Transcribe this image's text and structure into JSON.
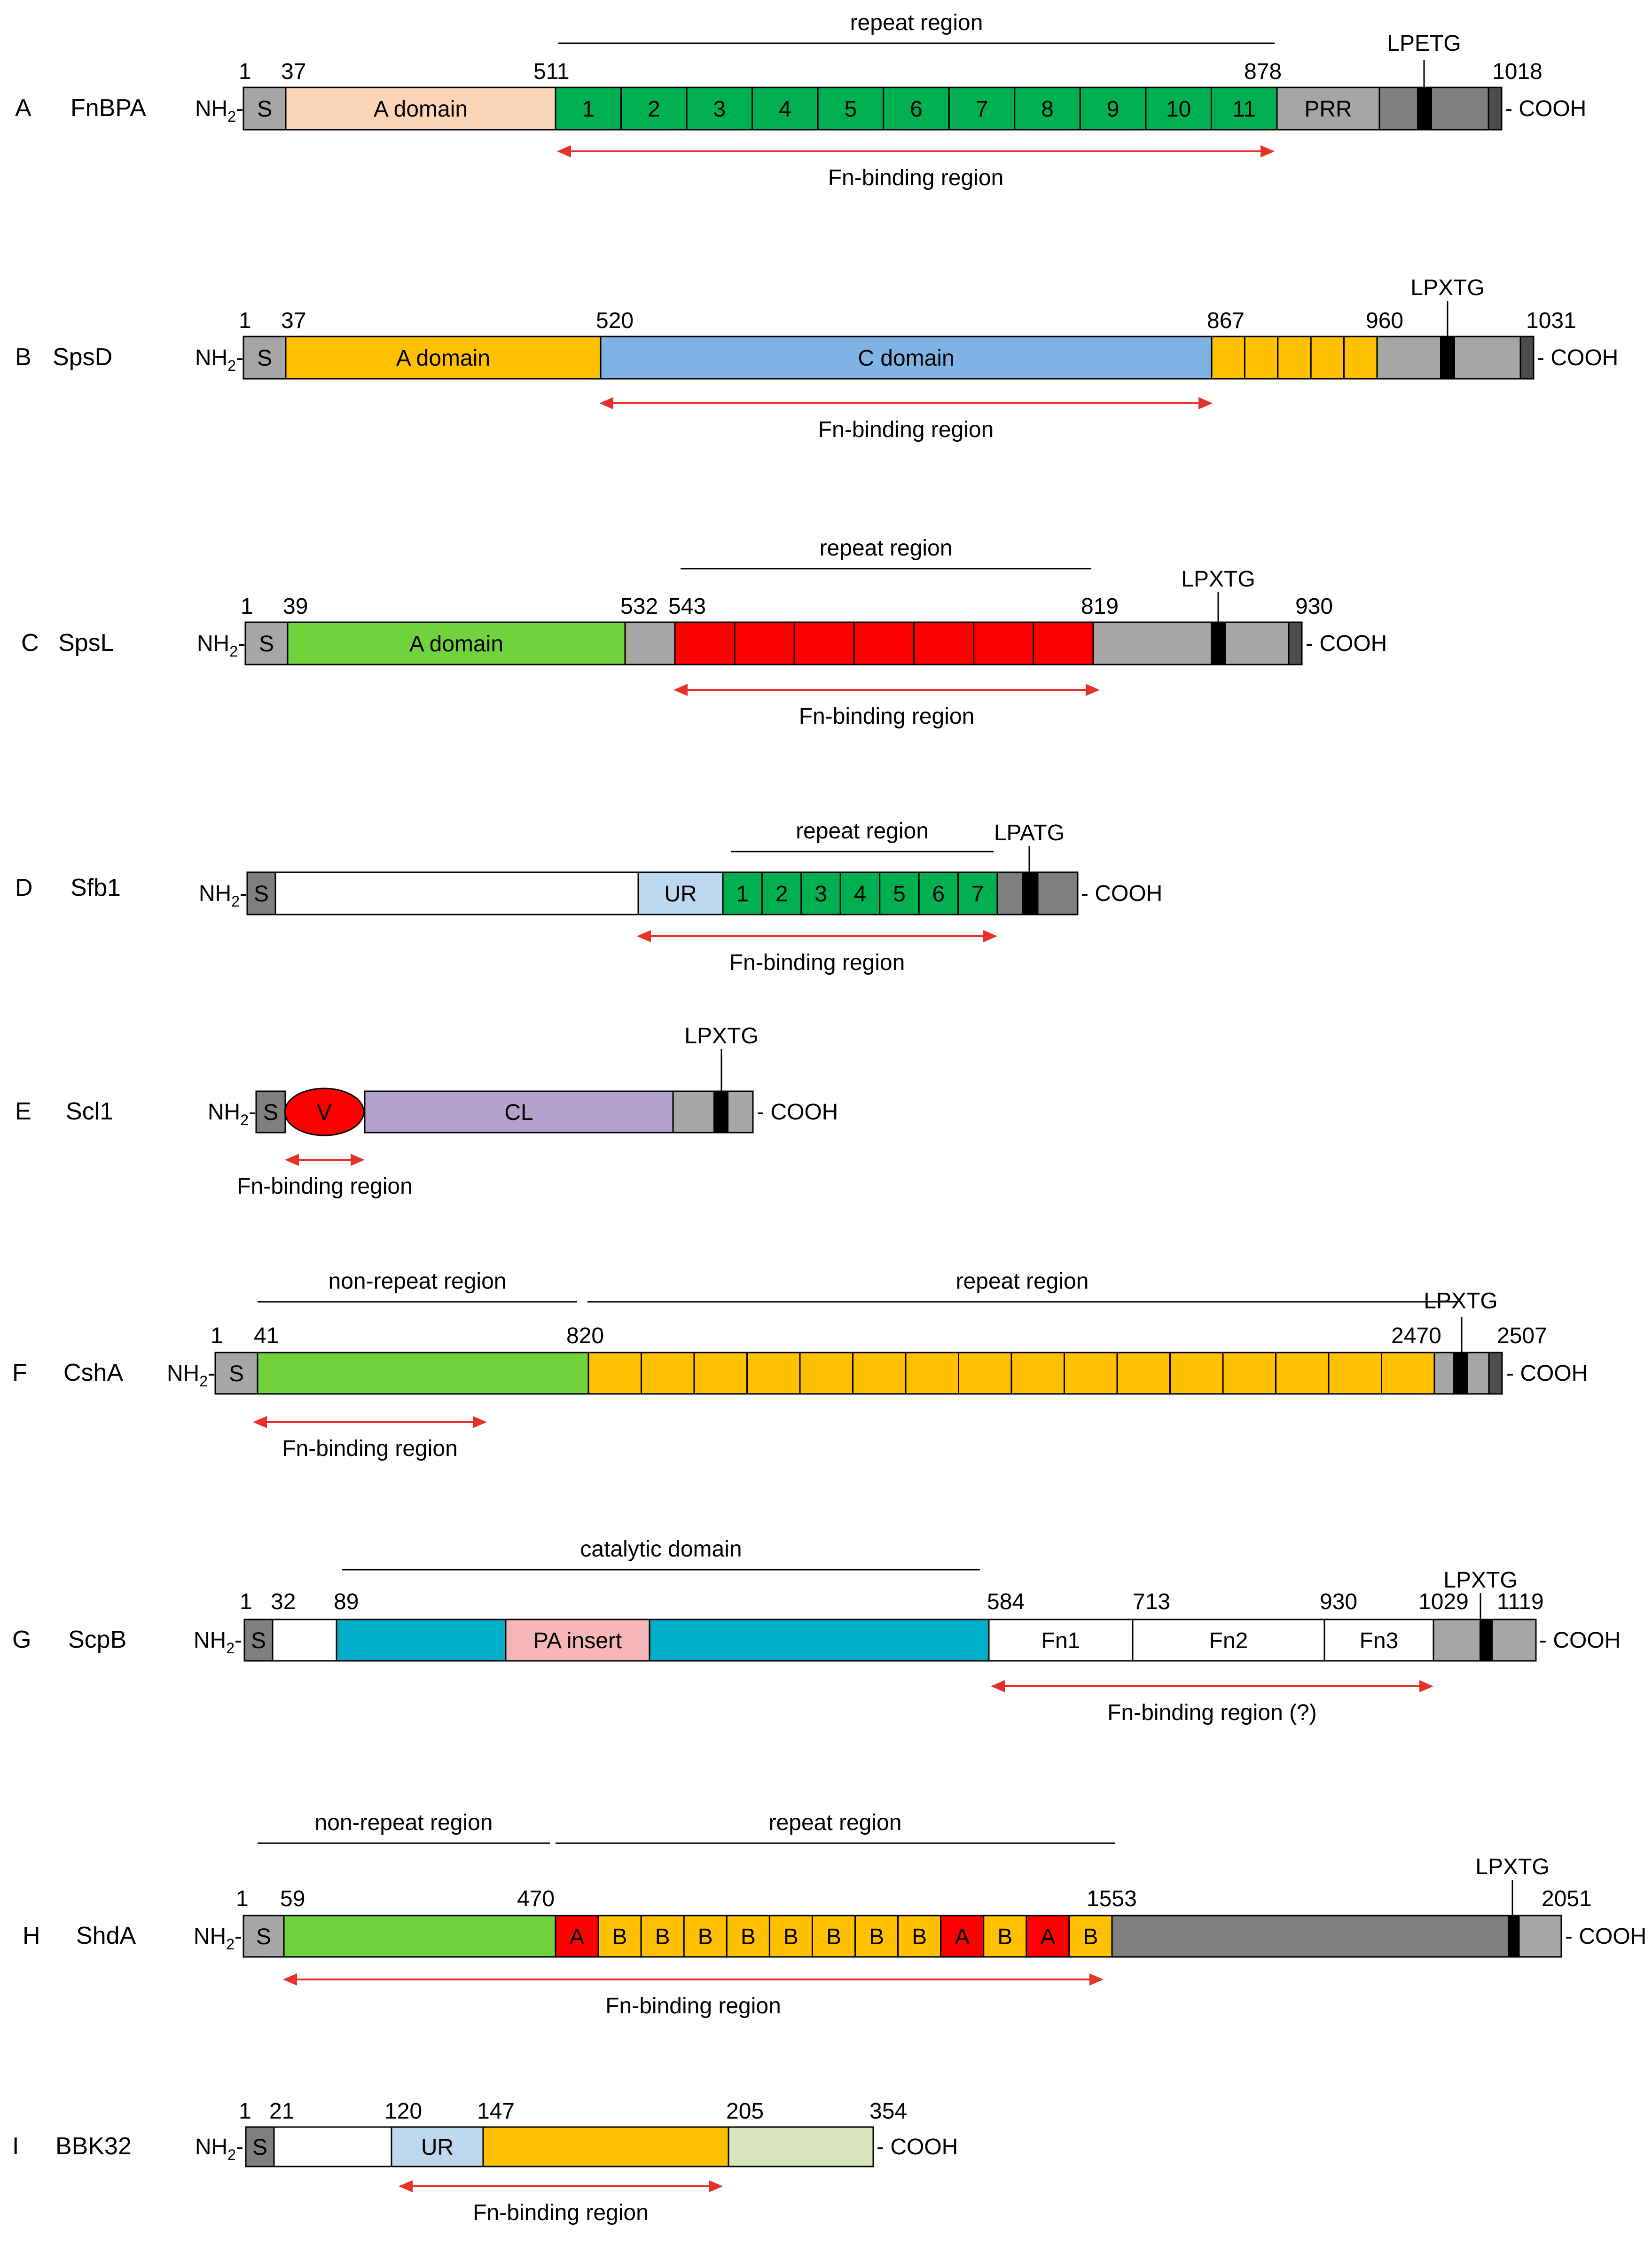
{
  "labels": {
    "nh2": "NH",
    "nh2_sub": "2",
    "nh2_dash": "-",
    "cooh": "- COOH",
    "signal": "S",
    "fn_binding": "Fn-binding region",
    "fn_binding_q": "Fn-binding region (?)",
    "repeat_region": "repeat region",
    "non_repeat_region": "non-repeat region",
    "catalytic_domain": "catalytic domain"
  },
  "colors": {
    "signal_dark": "#7f7f7f",
    "signal_light": "#a6a6a6",
    "grey": "#a6a6a6",
    "dark_grey": "#7f7f7f",
    "anchor": "#000000",
    "green": "#00b050",
    "light_green": "#70d23c",
    "orange": "#ffc000",
    "peach": "#fbd5b5",
    "blue": "#7eb3e3",
    "light_blue": "#bdd7ee",
    "red": "#ff0000",
    "lavender": "#b4a0cc",
    "teal": "#00aec7",
    "pink": "#f4b6b6",
    "pale_green": "#d8e4bc",
    "white": "#ffffff",
    "arrow": "#e8312a"
  },
  "proteins": [
    {
      "letter": "A",
      "name": "FnBPA",
      "numbers": [
        "1",
        "37",
        "511",
        "878",
        "1018"
      ],
      "motif": "LPETG",
      "domains": {
        "a": "A domain",
        "prr": "PRR"
      },
      "repeats": [
        "1",
        "2",
        "3",
        "4",
        "5",
        "6",
        "7",
        "8",
        "9",
        "10",
        "11"
      ],
      "brackets": [
        "repeat region"
      ],
      "arrows": [
        "Fn-binding region"
      ]
    },
    {
      "letter": "B",
      "name": "SpsD",
      "numbers": [
        "1",
        "37",
        "520",
        "867",
        "960",
        "1031"
      ],
      "motif": "LPXTG",
      "domains": {
        "a": "A domain",
        "c": "C domain"
      },
      "arrows": [
        "Fn-binding region"
      ]
    },
    {
      "letter": "C",
      "name": "SpsL",
      "numbers": [
        "1",
        "39",
        "532",
        "543",
        "819",
        "930"
      ],
      "motif": "LPXTG",
      "domains": {
        "a": "A domain"
      },
      "brackets": [
        "repeat region"
      ],
      "arrows": [
        "Fn-binding region"
      ]
    },
    {
      "letter": "D",
      "name": "Sfb1",
      "motif": "LPATG",
      "domains": {
        "ur": "UR"
      },
      "repeats": [
        "1",
        "2",
        "3",
        "4",
        "5",
        "6",
        "7"
      ],
      "brackets": [
        "repeat region"
      ],
      "arrows": [
        "Fn-binding region"
      ]
    },
    {
      "letter": "E",
      "name": "Scl1",
      "motif": "LPXTG",
      "domains": {
        "v": "V",
        "cl": "CL"
      },
      "arrows": [
        "Fn-binding region"
      ]
    },
    {
      "letter": "F",
      "name": "CshA",
      "numbers": [
        "1",
        "41",
        "820",
        "2470",
        "2507"
      ],
      "motif": "LPXTG",
      "brackets": [
        "non-repeat region",
        "repeat region"
      ],
      "arrows": [
        "Fn-binding region"
      ]
    },
    {
      "letter": "G",
      "name": "ScpB",
      "numbers": [
        "1",
        "32",
        "89",
        "584",
        "713",
        "930",
        "1029",
        "1119"
      ],
      "motif": "LPXTG",
      "domains": {
        "pa": "PA insert",
        "fn1": "Fn1",
        "fn2": "Fn2",
        "fn3": "Fn3"
      },
      "brackets": [
        "catalytic domain"
      ],
      "arrows": [
        "Fn-binding region (?)"
      ]
    },
    {
      "letter": "H",
      "name": "ShdA",
      "numbers": [
        "1",
        "59",
        "470",
        "1553",
        "2051"
      ],
      "motif": "LPXTG",
      "repeats": [
        "A",
        "B",
        "B",
        "B",
        "B",
        "B",
        "B",
        "B",
        "B",
        "A",
        "B",
        "A",
        "B"
      ],
      "brackets": [
        "non-repeat region",
        "repeat region"
      ],
      "arrows": [
        "Fn-binding region"
      ]
    },
    {
      "letter": "I",
      "name": "BBK32",
      "numbers": [
        "1",
        "21",
        "120",
        "147",
        "205",
        "354"
      ],
      "domains": {
        "ur": "UR"
      },
      "arrows": [
        "Fn-binding region"
      ]
    }
  ]
}
